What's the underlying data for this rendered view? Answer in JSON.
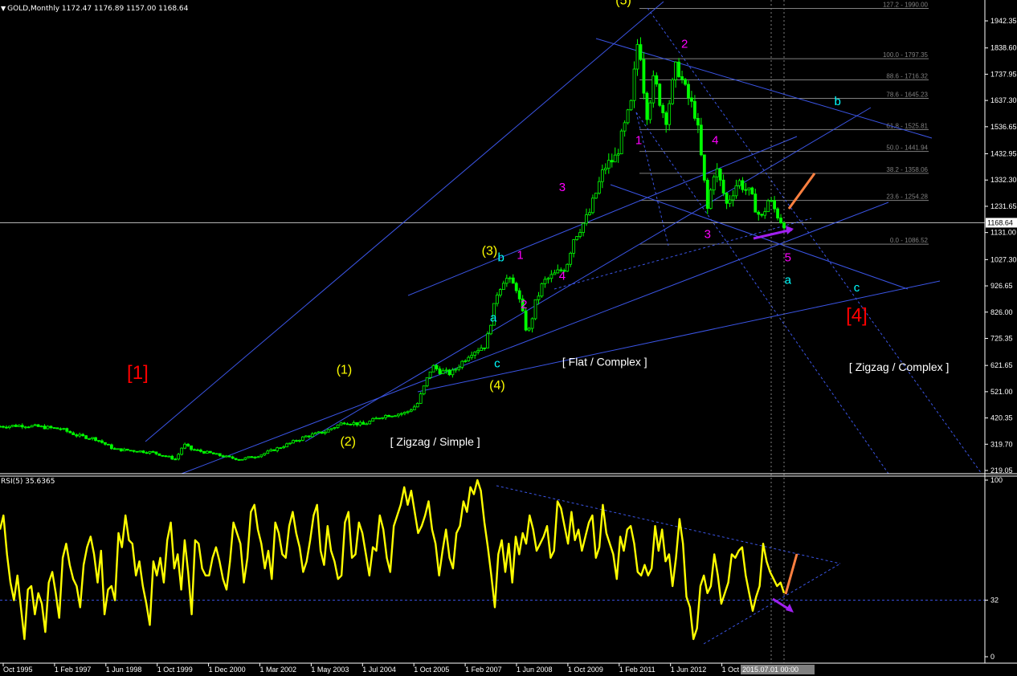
{
  "window": {
    "price_header": "GOLD,Monthly  1172.47 1176.89 1157.00 1168.64",
    "rsi_header": "RSI(5) 35.6365",
    "date_readout": "2015.07.01 00:00",
    "dropdown_icon": "chevron-down-icon"
  },
  "colors": {
    "background": "#000000",
    "bull_candle": "#00ff00",
    "bear_candle": "#00ff00",
    "trendline": "#3b55e6",
    "fib": "#808080",
    "rsi_line": "#ffff00",
    "wave_major": "#ffff00",
    "wave_minor": "#ff00ff",
    "wave_abc": "#00ffff",
    "wave_super": "#ff0000",
    "projection": "#ff8040",
    "arrow": "#a020f0"
  },
  "chart_data": [
    {
      "type": "candlestick",
      "name": "price",
      "ylim": [
        219.05,
        1990
      ],
      "y_ticks": [
        "1942.35",
        "1838.60",
        "1737.95",
        "1637.30",
        "1536.65",
        "1432.95",
        "1332.30",
        "1231.65",
        "1131.00",
        "1027.30",
        "926.65",
        "826.00",
        "725.35",
        "621.65",
        "521.00",
        "420.35",
        "319.70",
        "219.05"
      ],
      "current_price": "1168.64",
      "x_ticks": [
        "Oct 1995",
        "1 Feb 1997",
        "1 Jun 1998",
        "1 Oct 1999",
        "1 Dec 2000",
        "1 Mar 2002",
        "1 May 2003",
        "1 Jul 2004",
        "1 Oct 2005",
        "1 Feb 2007",
        "1 Jun 2008",
        "1 Oct 2009",
        "1 Feb 2011",
        "1 Jun 2012",
        "1 Oct 2"
      ],
      "x_range": [
        1995.0,
        2019.5
      ],
      "anchor_path": [
        [
          1995.0,
          388
        ],
        [
          1995.6,
          392
        ],
        [
          1996.2,
          384
        ],
        [
          1996.6,
          378
        ],
        [
          1997.0,
          354
        ],
        [
          1997.5,
          340
        ],
        [
          1998.0,
          300
        ],
        [
          1998.5,
          295
        ],
        [
          1999.0,
          288
        ],
        [
          1999.6,
          262
        ],
        [
          1999.8,
          320
        ],
        [
          2000.0,
          300
        ],
        [
          2000.5,
          285
        ],
        [
          2001.0,
          268
        ],
        [
          2001.3,
          262
        ],
        [
          2001.8,
          278
        ],
        [
          2002.5,
          318
        ],
        [
          2003.0,
          350
        ],
        [
          2003.5,
          368
        ],
        [
          2004.0,
          405
        ],
        [
          2004.5,
          395
        ],
        [
          2005.0,
          428
        ],
        [
          2005.6,
          440
        ],
        [
          2005.9,
          470
        ],
        [
          2006.3,
          620
        ],
        [
          2006.5,
          600
        ],
        [
          2006.8,
          590
        ],
        [
          2007.3,
          670
        ],
        [
          2007.7,
          700
        ],
        [
          2008.0,
          900
        ],
        [
          2008.2,
          960
        ],
        [
          2008.5,
          920
        ],
        [
          2008.8,
          735
        ],
        [
          2009.0,
          860
        ],
        [
          2009.2,
          940
        ],
        [
          2009.8,
          1000
        ],
        [
          2010.0,
          1110
        ],
        [
          2010.4,
          1200
        ],
        [
          2010.8,
          1380
        ],
        [
          2011.1,
          1420
        ],
        [
          2011.5,
          1620
        ],
        [
          2011.7,
          1900
        ],
        [
          2011.9,
          1580
        ],
        [
          2012.1,
          1720
        ],
        [
          2012.4,
          1560
        ],
        [
          2012.7,
          1780
        ],
        [
          2012.9,
          1680
        ],
        [
          2013.2,
          1580
        ],
        [
          2013.5,
          1220
        ],
        [
          2013.7,
          1390
        ],
        [
          2014.0,
          1240
        ],
        [
          2014.3,
          1330
        ],
        [
          2014.6,
          1280
        ],
        [
          2014.9,
          1180
        ],
        [
          2015.1,
          1260
        ],
        [
          2015.4,
          1180
        ],
        [
          2015.5,
          1168
        ]
      ],
      "fib_levels": [
        {
          "label": "127.2 - 1990.00",
          "value": 1990.0
        },
        {
          "label": "100.0 - 1797.35",
          "value": 1797.35
        },
        {
          "label": "88.6 - 1716.32",
          "value": 1716.32
        },
        {
          "label": "78.6 - 1645.23",
          "value": 1645.23
        },
        {
          "label": "61.8 - 1525.81",
          "value": 1525.81
        },
        {
          "label": "50.0 - 1441.94",
          "value": 1441.94
        },
        {
          "label": "38.2 - 1358.06",
          "value": 1358.06
        },
        {
          "label": "23.6 - 1254.28",
          "value": 1254.28
        },
        {
          "label": "0.0 - 1086.52",
          "value": 1086.52
        }
      ],
      "annotations": [
        {
          "text": "[1]",
          "x": 1998.6,
          "y": 570,
          "group": "wave_super"
        },
        {
          "text": "(1)",
          "x": 2004.0,
          "y": 590,
          "group": "wave_major"
        },
        {
          "text": "(2)",
          "x": 2004.1,
          "y": 315,
          "group": "wave_major"
        },
        {
          "text": "[ Zigzag / Simple ]",
          "x": 2005.2,
          "y": 315,
          "group": "note"
        },
        {
          "text": "(3)",
          "x": 2007.8,
          "y": 1045,
          "group": "wave_major"
        },
        {
          "text": "b",
          "x": 2008.1,
          "y": 1020,
          "group": "wave_abc"
        },
        {
          "text": "1",
          "x": 2008.6,
          "y": 1030,
          "group": "wave_minor"
        },
        {
          "text": "a",
          "x": 2007.9,
          "y": 790,
          "group": "wave_abc"
        },
        {
          "text": "2",
          "x": 2008.7,
          "y": 840,
          "group": "wave_minor"
        },
        {
          "text": "c",
          "x": 2008.0,
          "y": 615,
          "group": "wave_abc"
        },
        {
          "text": "[ Flat / Complex ]",
          "x": 2009.7,
          "y": 620,
          "group": "note"
        },
        {
          "text": "(4)",
          "x": 2008.0,
          "y": 530,
          "group": "wave_major"
        },
        {
          "text": "3",
          "x": 2009.7,
          "y": 1290,
          "group": "wave_minor"
        },
        {
          "text": "4",
          "x": 2009.7,
          "y": 950,
          "group": "wave_minor"
        },
        {
          "text": "(5)",
          "x": 2011.3,
          "y": 2005,
          "group": "wave_major"
        },
        {
          "text": "1",
          "x": 2011.7,
          "y": 1470,
          "group": "wave_minor"
        },
        {
          "text": "2",
          "x": 2012.9,
          "y": 1840,
          "group": "wave_minor"
        },
        {
          "text": "4",
          "x": 2013.7,
          "y": 1470,
          "group": "wave_minor"
        },
        {
          "text": "3",
          "x": 2013.5,
          "y": 1110,
          "group": "wave_minor"
        },
        {
          "text": "5",
          "x": 2015.6,
          "y": 1020,
          "group": "wave_minor"
        },
        {
          "text": "a",
          "x": 2015.6,
          "y": 935,
          "group": "wave_abc"
        },
        {
          "text": "b",
          "x": 2016.9,
          "y": 1620,
          "group": "wave_abc"
        },
        {
          "text": "c",
          "x": 2017.4,
          "y": 905,
          "group": "wave_abc"
        },
        {
          "text": "[4]",
          "x": 2017.4,
          "y": 790,
          "group": "wave_super"
        },
        {
          "text": "[ Zigzag / Complex ]",
          "x": 2017.2,
          "y": 600,
          "group": "note"
        }
      ]
    },
    {
      "type": "line",
      "name": "RSI(5)",
      "ylim": [
        0,
        100
      ],
      "level": 32,
      "y_ticks": [
        "100",
        "32",
        "0"
      ],
      "values": [
        72,
        80,
        58,
        42,
        32,
        46,
        28,
        10,
        38,
        40,
        24,
        36,
        30,
        14,
        42,
        48,
        36,
        22,
        56,
        64,
        52,
        44,
        40,
        28,
        52,
        62,
        68,
        58,
        42,
        60,
        24,
        38,
        40,
        32,
        70,
        62,
        80,
        66,
        64,
        46,
        54,
        40,
        30,
        18,
        54,
        46,
        56,
        42,
        66,
        76,
        50,
        58,
        38,
        66,
        48,
        24,
        66,
        64,
        50,
        46,
        46,
        56,
        62,
        54,
        44,
        38,
        54,
        76,
        70,
        64,
        42,
        56,
        82,
        86,
        72,
        64,
        50,
        60,
        44,
        76,
        70,
        58,
        56,
        74,
        82,
        70,
        62,
        48,
        54,
        66,
        80,
        86,
        60,
        52,
        74,
        60,
        54,
        44,
        46,
        76,
        82,
        56,
        58,
        76,
        70,
        58,
        46,
        62,
        60,
        80,
        72,
        56,
        48,
        74,
        80,
        86,
        96,
        86,
        94,
        82,
        70,
        74,
        80,
        88,
        72,
        64,
        46,
        60,
        72,
        56,
        50,
        70,
        74,
        88,
        82,
        96,
        92,
        100,
        94,
        76,
        62,
        46,
        28,
        58,
        66,
        48,
        64,
        42,
        68,
        58,
        70,
        64,
        80,
        72,
        60,
        64,
        68,
        74,
        56,
        60,
        88,
        84,
        74,
        64,
        82,
        66,
        72,
        60,
        68,
        76,
        80,
        56,
        62,
        86,
        70,
        64,
        58,
        44,
        68,
        60,
        72,
        74,
        64,
        48,
        46,
        52,
        46,
        50,
        74,
        60,
        72,
        54,
        58,
        40,
        56,
        78,
        64,
        34,
        28,
        10,
        16,
        40,
        46,
        36,
        40,
        58,
        46,
        30,
        36,
        42,
        58,
        56,
        60,
        62,
        46,
        36,
        26,
        34,
        40,
        64,
        54,
        48,
        44,
        40,
        42,
        36
      ]
    }
  ]
}
